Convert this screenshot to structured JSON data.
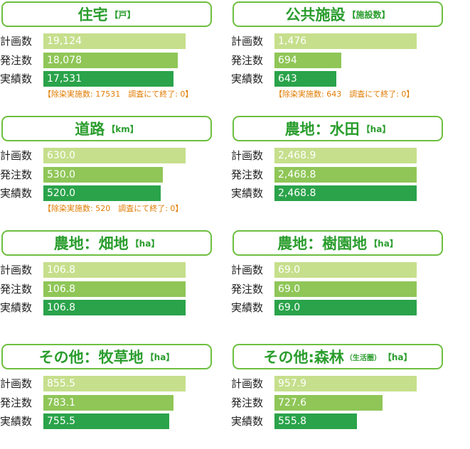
{
  "colors": {
    "border": "#6cbf3f",
    "title": "#2a9d2d",
    "plan_bar": "#c6df8c",
    "order_bar": "#8fc657",
    "done_bar": "#2aa34a",
    "note": "#e07b00"
  },
  "chart_data": [
    {
      "type": "bar",
      "orientation": "horizontal",
      "title": "住宅",
      "unit": "【戸】",
      "categories": [
        "計画数",
        "発注数",
        "実績数"
      ],
      "values": [
        19124,
        18078,
        17531
      ],
      "value_labels": [
        "19,124",
        "18,078",
        "17,531"
      ],
      "note": "【除染実施数: 17531　調査にて終了: 0】"
    },
    {
      "type": "bar",
      "orientation": "horizontal",
      "title": "公共施設",
      "unit": "【施設数】",
      "categories": [
        "計画数",
        "発注数",
        "実績数"
      ],
      "values": [
        1476,
        694,
        643
      ],
      "value_labels": [
        "1,476",
        "694",
        "643"
      ],
      "note": "【除染実施数: 643　調査にて終了: 0】"
    },
    {
      "type": "bar",
      "orientation": "horizontal",
      "title": "道路",
      "unit": "【km】",
      "categories": [
        "計画数",
        "発注数",
        "実績数"
      ],
      "values": [
        630.0,
        530.0,
        520.0
      ],
      "value_labels": [
        "630.0",
        "530.0",
        "520.0"
      ],
      "note": "【除染実施数: 520　調査にて終了: 0】"
    },
    {
      "type": "bar",
      "orientation": "horizontal",
      "title": "農地：水田",
      "unit": "【ha】",
      "categories": [
        "計画数",
        "発注数",
        "実績数"
      ],
      "values": [
        2468.9,
        2468.8,
        2468.8
      ],
      "value_labels": [
        "2,468.9",
        "2,468.8",
        "2,468.8"
      ]
    },
    {
      "type": "bar",
      "orientation": "horizontal",
      "title": "農地：畑地",
      "unit": "【ha】",
      "categories": [
        "計画数",
        "発注数",
        "実績数"
      ],
      "values": [
        106.8,
        106.8,
        106.8
      ],
      "value_labels": [
        "106.8",
        "106.8",
        "106.8"
      ]
    },
    {
      "type": "bar",
      "orientation": "horizontal",
      "title": "農地：樹園地",
      "unit": "【ha】",
      "categories": [
        "計画数",
        "発注数",
        "実績数"
      ],
      "values": [
        69.0,
        69.0,
        69.0
      ],
      "value_labels": [
        "69.0",
        "69.0",
        "69.0"
      ]
    },
    {
      "type": "bar",
      "orientation": "horizontal",
      "title": "その他：牧草地",
      "unit": "【ha】",
      "categories": [
        "計画数",
        "発注数",
        "実績数"
      ],
      "values": [
        855.5,
        783.1,
        755.5
      ],
      "value_labels": [
        "855.5",
        "783.1",
        "755.5"
      ]
    },
    {
      "type": "bar",
      "orientation": "horizontal",
      "title": "その他:森林",
      "subtitle": "（生活圏）",
      "unit": "【ha】",
      "categories": [
        "計画数",
        "発注数",
        "実績数"
      ],
      "values": [
        957.9,
        727.6,
        555.8
      ],
      "value_labels": [
        "957.9",
        "727.6",
        "555.8"
      ]
    }
  ]
}
